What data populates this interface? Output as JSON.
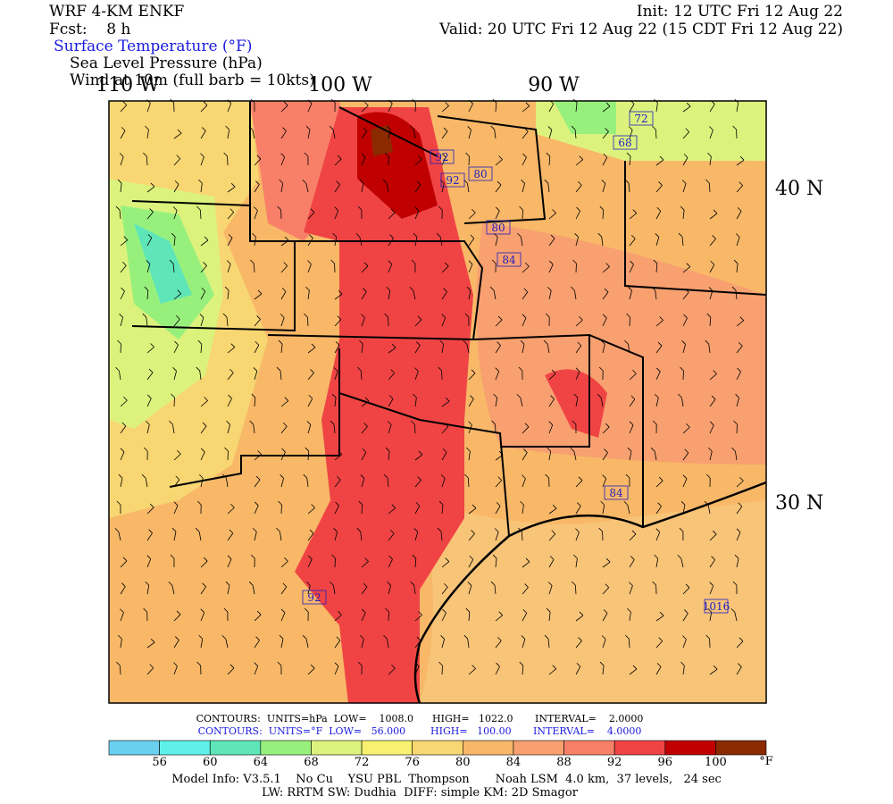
{
  "header": {
    "model": "WRF 4-KM ENKF",
    "forecast": "Fcst:    8 h",
    "init": "Init: 12 UTC Fri 12 Aug 22",
    "valid": "Valid: 20 UTC Fri 12 Aug 22 (15 CDT Fri 12 Aug 22)",
    "fields": [
      "Surface Temperature (°F)",
      "Sea Level Pressure (hPa)",
      "Wind at 10m (full barb = 10kts)"
    ]
  },
  "map": {
    "longitude_labels": [
      "110 W",
      "100 W",
      "90 W"
    ],
    "latitude_labels": [
      "40 N",
      "30 N"
    ],
    "contour_labels": [
      "92",
      "92",
      "80",
      "80",
      "84",
      "72",
      "68",
      "84",
      "92",
      "1016"
    ]
  },
  "contour_info": [
    "CONTOURS:  UNITS=hPa  LOW=    1008.0      HIGH=   1022.0       INTERVAL=    2.0000",
    "CONTOURS:  UNITS=°F  LOW=   56.000        HIGH=   100.00       INTERVAL=    4.0000"
  ],
  "colorbar": {
    "ticks": [
      56,
      60,
      64,
      68,
      72,
      76,
      80,
      84,
      88,
      92,
      96,
      100
    ],
    "unit": "°F",
    "colors": [
      "#6ad0f0",
      "#5ff0ea",
      "#5fe6b8",
      "#98f07c",
      "#dcf27c",
      "#f8f070",
      "#f8d672",
      "#f8b868",
      "#f8a070",
      "#f88068",
      "#f04444",
      "#c00000",
      "#8b2a00"
    ]
  },
  "footer": [
    "Model Info: V3.5.1    No Cu    YSU PBL  Thompson       Noah LSM  4.0 km,  37 levels,   24 sec",
    "LW: RRTM SW: Dudhia  DIFF: simple KM: 2D Smagor"
  ]
}
